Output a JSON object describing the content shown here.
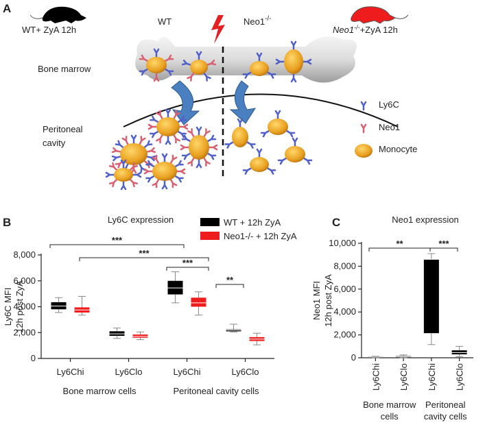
{
  "panel_a": {
    "label": "A",
    "mouse_left": "WT+ ZyA 12h",
    "side_left": "WT",
    "side_right": {
      "text": "Neo1",
      "sup": "-/-"
    },
    "mouse_right": {
      "text": "Neo1",
      "sup": "-/-",
      "rest": "+ZyA 12h"
    },
    "bone_marrow": "Bone marrow",
    "peritoneal": [
      "Peritoneal",
      "cavity"
    ],
    "legend": [
      "Ly6C",
      "Neo1",
      "Monocyte"
    ]
  },
  "chart_data": [
    {
      "type": "box",
      "panel": "B",
      "title": "Ly6C expression",
      "ylabel": [
        "Ly6C MFI",
        "12h post ZyA"
      ],
      "categories": [
        "Ly6Chi",
        "Ly6Clo",
        "Ly6Chi",
        "Ly6Clo"
      ],
      "groups": [
        "Bone marrow cells",
        "Peritoneal cavity cells"
      ],
      "ylim": [
        0,
        8000
      ],
      "yticks": [
        0,
        {
          "value": 2000,
          "label": "2,000"
        },
        {
          "value": 4000,
          "label": "4,000"
        },
        {
          "value": 6000,
          "label": "6,000"
        },
        {
          "value": 8000,
          "label": "8,000"
        }
      ],
      "series": [
        {
          "name": "WT + 12h  ZyA",
          "color": "#000000",
          "values": [
            {
              "min": 3550,
              "q1": 3800,
              "median": 4050,
              "q3": 4350,
              "max": 4700
            },
            {
              "min": 1550,
              "q1": 1750,
              "median": 1900,
              "q3": 2100,
              "max": 2350
            },
            {
              "min": 4300,
              "q1": 4950,
              "median": 5450,
              "q3": 6000,
              "max": 6700
            },
            {
              "min": 2050,
              "q1": 2100,
              "median": 2200,
              "q3": 2250,
              "max": 2650
            }
          ]
        },
        {
          "name": "Neo1-/- + 12h ZyA",
          "color": "#ee1c1c",
          "values": [
            {
              "min": 3350,
              "q1": 3550,
              "median": 3750,
              "q3": 3950,
              "max": 4800
            },
            {
              "min": 1450,
              "q1": 1600,
              "median": 1700,
              "q3": 1850,
              "max": 2050
            },
            {
              "min": 3350,
              "q1": 4000,
              "median": 4300,
              "q3": 4700,
              "max": 5150
            },
            {
              "min": 1050,
              "q1": 1350,
              "median": 1500,
              "q3": 1650,
              "max": 1950
            }
          ]
        }
      ],
      "significance": [
        "***",
        "***",
        "***",
        "**"
      ]
    },
    {
      "type": "box",
      "panel": "C",
      "title": "Neo1 expression",
      "ylabel": [
        "Neo1 MFI",
        "12h post ZyA"
      ],
      "categories": [
        "Ly6Chi",
        "Ly6Clo",
        "Ly6Chi",
        "Ly6Clo"
      ],
      "groups": [
        [
          "Bone marrow",
          "cells"
        ],
        [
          "Peritoneal",
          "cavity cells"
        ]
      ],
      "ylim": [
        0,
        10000
      ],
      "yticks": [
        0,
        {
          "value": 2000,
          "label": "2,000"
        },
        {
          "value": 4000,
          "label": "4,000"
        },
        {
          "value": 6000,
          "label": "6,000"
        },
        {
          "value": 8000,
          "label": "8,000"
        },
        {
          "value": 10000,
          "label": "10,000"
        }
      ],
      "series": [
        {
          "color": "#000000",
          "values": [
            {
              "min": 0,
              "q1": 30,
              "median": 60,
              "q3": 100,
              "max": 130
            },
            {
              "min": 0,
              "q1": 50,
              "median": 100,
              "q3": 150,
              "max": 250
            },
            {
              "min": 1150,
              "q1": 2150,
              "median": 8600,
              "q3": 8600,
              "max": 9100
            },
            {
              "min": 100,
              "q1": 300,
              "median": 450,
              "q3": 650,
              "max": 1000
            }
          ]
        }
      ],
      "significance": [
        "**",
        "***"
      ]
    }
  ]
}
